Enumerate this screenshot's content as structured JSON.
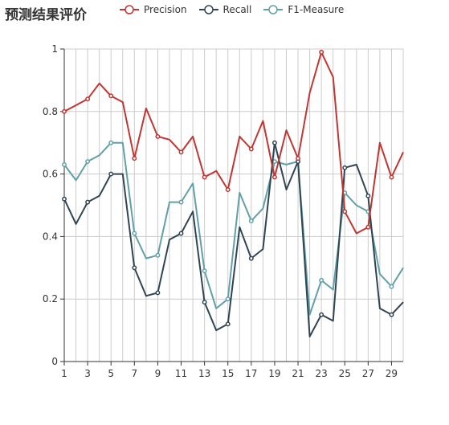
{
  "chart_data": {
    "type": "line",
    "title": "预测结果评价",
    "xlabel": "",
    "ylabel": "",
    "ylim": [
      0,
      1
    ],
    "y_ticks": [
      "0",
      "0.2",
      "0.4",
      "0.6",
      "0.8",
      "1"
    ],
    "x_ticks": [
      "1",
      "3",
      "5",
      "7",
      "9",
      "11",
      "13",
      "15",
      "17",
      "19",
      "21",
      "23",
      "25",
      "27",
      "29"
    ],
    "x": [
      1,
      2,
      3,
      4,
      5,
      6,
      7,
      8,
      9,
      10,
      11,
      12,
      13,
      14,
      15,
      16,
      17,
      18,
      19,
      20,
      21,
      22,
      23,
      24,
      25,
      26,
      27,
      28,
      29,
      30
    ],
    "grid": true,
    "legend_position": "top",
    "series": [
      {
        "name": "Precision",
        "color": "#c23531",
        "values": [
          0.8,
          0.82,
          0.84,
          0.89,
          0.85,
          0.83,
          0.65,
          0.81,
          0.72,
          0.71,
          0.67,
          0.72,
          0.59,
          0.61,
          0.55,
          0.72,
          0.68,
          0.77,
          0.59,
          0.74,
          0.65,
          0.86,
          0.99,
          0.91,
          0.48,
          0.41,
          0.43,
          0.7,
          0.59,
          0.67
        ]
      },
      {
        "name": "Recall",
        "color": "#2f4554",
        "values": [
          0.52,
          0.44,
          0.51,
          0.53,
          0.6,
          0.6,
          0.3,
          0.21,
          0.22,
          0.39,
          0.41,
          0.48,
          0.19,
          0.1,
          0.12,
          0.43,
          0.33,
          0.36,
          0.7,
          0.55,
          0.64,
          0.08,
          0.15,
          0.13,
          0.62,
          0.63,
          0.53,
          0.17,
          0.15,
          0.19
        ]
      },
      {
        "name": "F1-Measure",
        "color": "#61a0a8",
        "values": [
          0.63,
          0.58,
          0.64,
          0.66,
          0.7,
          0.7,
          0.41,
          0.33,
          0.34,
          0.51,
          0.51,
          0.57,
          0.29,
          0.17,
          0.2,
          0.54,
          0.45,
          0.49,
          0.64,
          0.63,
          0.64,
          0.15,
          0.26,
          0.23,
          0.54,
          0.5,
          0.48,
          0.28,
          0.24,
          0.3
        ]
      }
    ]
  }
}
